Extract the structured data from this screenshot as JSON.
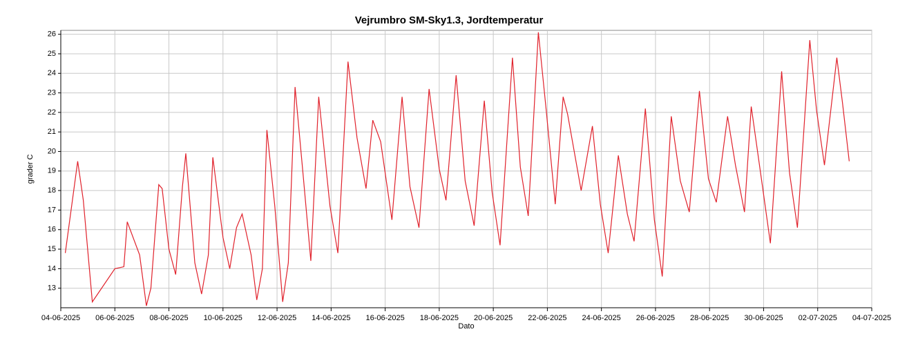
{
  "chart_data": {
    "type": "line",
    "title": "Vejrumbro SM-Sky1.3, Jordtemperatur",
    "x_label": "Dato",
    "y_label": "grader C",
    "xlim": [
      "2025-06-04T00:00",
      "2025-07-04T00:00"
    ],
    "xticks": [
      {
        "value": "2025-06-04T00:00",
        "label": "04-06-2025"
      },
      {
        "value": "2025-06-06T00:00",
        "label": "06-06-2025"
      },
      {
        "value": "2025-06-08T00:00",
        "label": "08-06-2025"
      },
      {
        "value": "2025-06-10T00:00",
        "label": "10-06-2025"
      },
      {
        "value": "2025-06-12T00:00",
        "label": "12-06-2025"
      },
      {
        "value": "2025-06-14T00:00",
        "label": "14-06-2025"
      },
      {
        "value": "2025-06-16T00:00",
        "label": "16-06-2025"
      },
      {
        "value": "2025-06-18T00:00",
        "label": "18-06-2025"
      },
      {
        "value": "2025-06-20T00:00",
        "label": "20-06-2025"
      },
      {
        "value": "2025-06-22T00:00",
        "label": "22-06-2025"
      },
      {
        "value": "2025-06-24T00:00",
        "label": "24-06-2025"
      },
      {
        "value": "2025-06-26T00:00",
        "label": "26-06-2025"
      },
      {
        "value": "2025-06-28T00:00",
        "label": "28-06-2025"
      },
      {
        "value": "2025-06-30T00:00",
        "label": "30-06-2025"
      },
      {
        "value": "2025-07-02T00:00",
        "label": "02-07-2025"
      },
      {
        "value": "2025-07-04T00:00",
        "label": "04-07-2025"
      }
    ],
    "ylim": [
      12,
      26.2
    ],
    "yticks": [
      13,
      14,
      15,
      16,
      17,
      18,
      19,
      20,
      21,
      22,
      23,
      24,
      25,
      26
    ],
    "grid": true,
    "x": [
      "2025-06-04T04:00",
      "2025-06-04T15:00",
      "2025-06-04T20:00",
      "2025-06-05T04:00",
      "2025-06-06T00:00",
      "2025-06-06T08:00",
      "2025-06-06T11:00",
      "2025-06-06T22:00",
      "2025-06-07T04:00",
      "2025-06-07T08:00",
      "2025-06-07T15:00",
      "2025-06-07T18:00",
      "2025-06-08T00:00",
      "2025-06-08T06:00",
      "2025-06-08T12:00",
      "2025-06-08T15:00",
      "2025-06-08T23:00",
      "2025-06-09T05:00",
      "2025-06-09T11:00",
      "2025-06-09T15:00",
      "2025-06-10T00:00",
      "2025-06-10T06:00",
      "2025-06-10T12:00",
      "2025-06-10T17:00",
      "2025-06-11T01:00",
      "2025-06-11T06:00",
      "2025-06-11T11:00",
      "2025-06-11T15:00",
      "2025-06-11T22:00",
      "2025-06-12T05:00",
      "2025-06-12T10:00",
      "2025-06-12T16:00",
      "2025-06-12T23:00",
      "2025-06-13T06:00",
      "2025-06-13T13:00",
      "2025-06-13T23:00",
      "2025-06-14T06:00",
      "2025-06-14T15:00",
      "2025-06-14T23:00",
      "2025-06-15T07:00",
      "2025-06-15T13:00",
      "2025-06-15T20:00",
      "2025-06-16T06:00",
      "2025-06-16T15:00",
      "2025-06-16T22:00",
      "2025-06-17T06:00",
      "2025-06-17T15:00",
      "2025-06-18T00:00",
      "2025-06-18T06:00",
      "2025-06-18T15:00",
      "2025-06-18T23:00",
      "2025-06-19T07:00",
      "2025-06-19T16:00",
      "2025-06-19T23:00",
      "2025-06-20T06:00",
      "2025-06-20T17:00",
      "2025-06-21T00:00",
      "2025-06-21T07:00",
      "2025-06-21T16:00",
      "2025-06-21T23:00",
      "2025-06-22T07:00",
      "2025-06-22T14:00",
      "2025-06-22T18:00",
      "2025-06-23T06:00",
      "2025-06-23T16:00",
      "2025-06-23T23:00",
      "2025-06-24T06:00",
      "2025-06-24T15:00",
      "2025-06-24T23:00",
      "2025-06-25T05:00",
      "2025-06-25T15:00",
      "2025-06-25T23:00",
      "2025-06-26T06:00",
      "2025-06-26T14:00",
      "2025-06-26T22:00",
      "2025-06-27T06:00",
      "2025-06-27T15:00",
      "2025-06-27T23:00",
      "2025-06-28T06:00",
      "2025-06-28T16:00",
      "2025-06-28T23:00",
      "2025-06-29T07:00",
      "2025-06-29T13:00",
      "2025-06-29T23:00",
      "2025-06-30T06:00",
      "2025-06-30T16:00",
      "2025-06-30T23:00",
      "2025-07-01T06:00",
      "2025-07-01T17:00",
      "2025-07-01T23:00",
      "2025-07-02T06:00",
      "2025-07-02T17:00",
      "2025-07-02T22:00",
      "2025-07-03T04:00"
    ],
    "series": [
      {
        "color": "#e0202a",
        "values": [
          14.8,
          19.5,
          17.5,
          12.3,
          14.0,
          14.1,
          16.4,
          14.7,
          12.1,
          13.0,
          18.3,
          18.1,
          15.0,
          13.7,
          18.2,
          19.9,
          14.3,
          12.7,
          14.7,
          19.7,
          15.6,
          14.0,
          16.1,
          16.8,
          14.7,
          12.4,
          14.0,
          21.1,
          17.2,
          12.3,
          14.3,
          23.3,
          18.9,
          14.4,
          22.8,
          17.2,
          14.8,
          24.6,
          20.7,
          18.1,
          21.6,
          20.5,
          16.5,
          22.8,
          18.2,
          16.1,
          23.2,
          19.1,
          17.5,
          23.9,
          18.5,
          16.2,
          22.6,
          17.9,
          15.2,
          24.8,
          19.2,
          16.7,
          26.1,
          22.1,
          17.3,
          22.8,
          21.9,
          18.0,
          21.3,
          17.3,
          14.8,
          19.8,
          16.8,
          15.4,
          22.2,
          16.5,
          13.6,
          21.8,
          18.5,
          16.9,
          23.1,
          18.6,
          17.4,
          21.8,
          19.3,
          16.9,
          22.3,
          18.2,
          15.3,
          24.1,
          18.9,
          16.1,
          25.7,
          22.1,
          19.3,
          24.8,
          22.5,
          19.5
        ]
      }
    ]
  }
}
